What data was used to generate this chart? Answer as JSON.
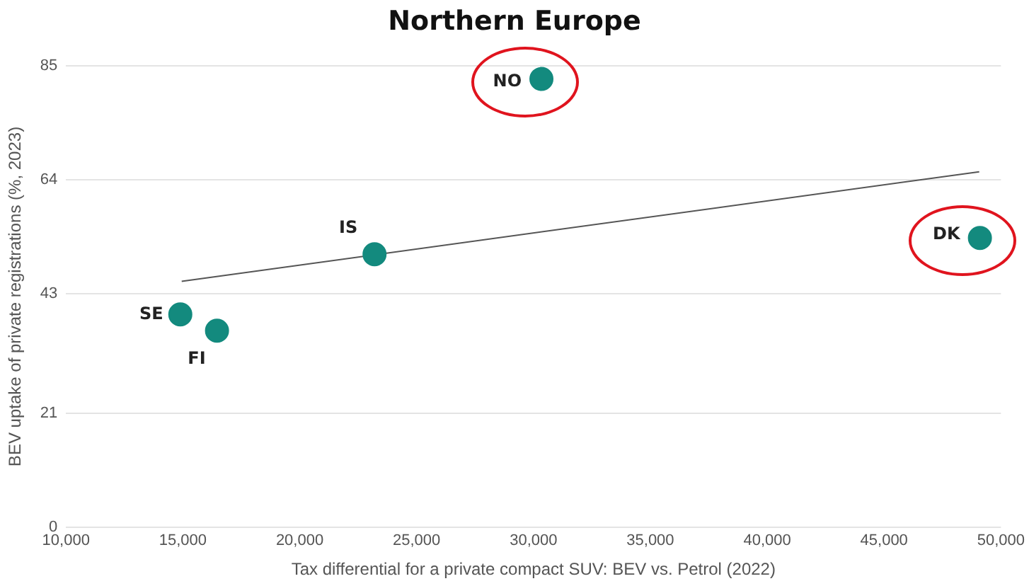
{
  "chart_data": {
    "type": "scatter",
    "title": "Northern Europe",
    "xlabel": "Tax differential for a private compact SUV: BEV vs. Petrol (2022)",
    "ylabel": "BEV uptake of private registrations (%, 2023)",
    "series": [
      {
        "name": "SE",
        "color": "#138a7e",
        "x": [
          14890
        ],
        "values": [
          39.2
        ]
      },
      {
        "name": "FI",
        "color": "#138a7e",
        "x": [
          16460
        ],
        "values": [
          36.2
        ]
      },
      {
        "name": "IS",
        "color": "#138a7e",
        "x": [
          23200
        ],
        "values": [
          50.3
        ]
      },
      {
        "name": "NO",
        "color": "#138a7e",
        "x": [
          30340
        ],
        "values": [
          82.6
        ]
      },
      {
        "name": "DK",
        "color": "#138a7e",
        "x": [
          49100
        ],
        "values": [
          53.3
        ]
      },
      {
        "type": "line",
        "marker": "none",
        "color": "#555555",
        "x": [
          14950,
          49070
        ],
        "values": [
          45.3,
          65.5
        ]
      }
    ],
    "xlim": [
      10000,
      50000
    ],
    "xticks": [
      {
        "value": 10000,
        "label": "10,000"
      },
      {
        "value": 15000,
        "label": "15,000"
      },
      {
        "value": 20000,
        "label": "20,000"
      },
      {
        "value": 25000,
        "label": "25,000"
      },
      {
        "value": 30000,
        "label": "30,000"
      },
      {
        "value": 35000,
        "label": "35,000"
      },
      {
        "value": 40000,
        "label": "40,000"
      },
      {
        "value": 45000,
        "label": "45,000"
      },
      {
        "value": 50000,
        "label": "50,000"
      }
    ],
    "ylim": [
      0,
      85
    ],
    "yticks": [
      0,
      21,
      43,
      64,
      85
    ],
    "grid": "y",
    "legend": false,
    "marker": "circle"
  }
}
